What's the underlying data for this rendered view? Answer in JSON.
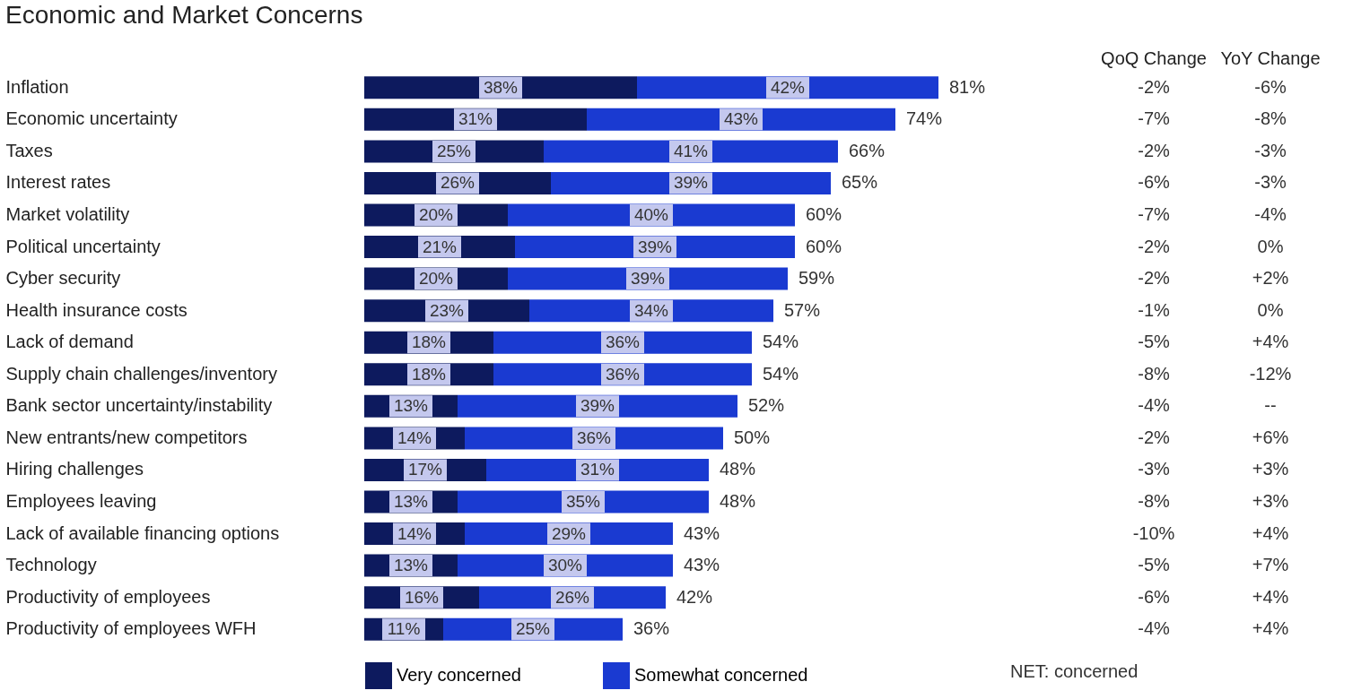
{
  "chart_data": {
    "type": "bar",
    "orientation": "horizontal",
    "stacked": true,
    "title": "Economic and Market Concerns",
    "categories": [
      "Inflation",
      "Economic uncertainty",
      "Taxes",
      "Interest rates",
      "Market volatility",
      "Political uncertainty",
      "Cyber security",
      "Health insurance costs",
      "Lack of demand",
      "Supply chain challenges/inventory",
      "Bank sector uncertainty/instability",
      "New entrants/new competitors",
      "Hiring challenges",
      "Employees leaving",
      "Lack of available financing options",
      "Technology",
      "Productivity of employees",
      "Productivity of employees WFH"
    ],
    "series": [
      {
        "name": "Very concerned",
        "color": "#0d1a5e",
        "values": [
          38,
          31,
          25,
          26,
          20,
          21,
          20,
          23,
          18,
          18,
          13,
          14,
          17,
          13,
          14,
          13,
          16,
          11
        ],
        "value_labels": [
          "38%",
          "31%",
          "25%",
          "26%",
          "20%",
          "21%",
          "20%",
          "23%",
          "18%",
          "18%",
          "13%",
          "14%",
          "17%",
          "13%",
          "14%",
          "13%",
          "16%",
          "11%"
        ]
      },
      {
        "name": "Somewhat concerned",
        "color": "#1a3ad1",
        "values": [
          42,
          43,
          41,
          39,
          40,
          39,
          39,
          34,
          36,
          36,
          39,
          36,
          31,
          35,
          29,
          30,
          26,
          25
        ],
        "value_labels": [
          "42%",
          "43%",
          "41%",
          "39%",
          "40%",
          "39%",
          "39%",
          "34%",
          "36%",
          "36%",
          "39%",
          "36%",
          "31%",
          "35%",
          "29%",
          "30%",
          "26%",
          "25%"
        ]
      }
    ],
    "totals": [
      "81%",
      "74%",
      "66%",
      "65%",
      "60%",
      "60%",
      "59%",
      "57%",
      "54%",
      "54%",
      "52%",
      "50%",
      "48%",
      "48%",
      "43%",
      "43%",
      "42%",
      "36%"
    ],
    "annotations": [
      "NET: concerned",
      "QoQ Change",
      "YoY Change",
      "-2%",
      "-6%",
      "-7%",
      "-8%",
      "-2%",
      "-3%",
      "-6%",
      "-3%",
      "-7%",
      "-4%",
      "-2%",
      "0%",
      "-2%",
      "+2%",
      "-1%",
      "0%",
      "-5%",
      "+4%",
      "-8%",
      "-12%",
      "-4%",
      "--",
      "-2%",
      "+6%",
      "-3%",
      "+3%",
      "-8%",
      "+3%",
      "-10%",
      "+4%",
      "-5%",
      "+7%",
      "-6%",
      "+4%",
      "-4%",
      "+4%"
    ],
    "legend": "bottom"
  }
}
